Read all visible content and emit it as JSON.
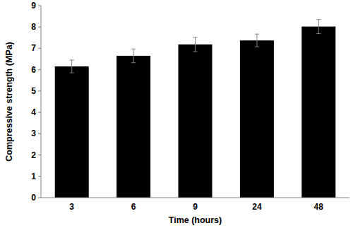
{
  "chart_data": {
    "type": "bar",
    "x_label": "Time (hours)",
    "y_label": "Compressive strength (MPa)",
    "categories": [
      "3",
      "6",
      "9",
      "24",
      "48"
    ],
    "values": [
      6.15,
      6.65,
      7.18,
      7.37,
      8.02
    ],
    "errors": [
      0.3,
      0.32,
      0.33,
      0.3,
      0.33
    ],
    "color": "#000000",
    "ylim": [
      0,
      9
    ],
    "yticks": [
      0,
      1,
      2,
      3,
      4,
      5,
      6,
      7,
      8,
      9
    ],
    "grid": false
  }
}
